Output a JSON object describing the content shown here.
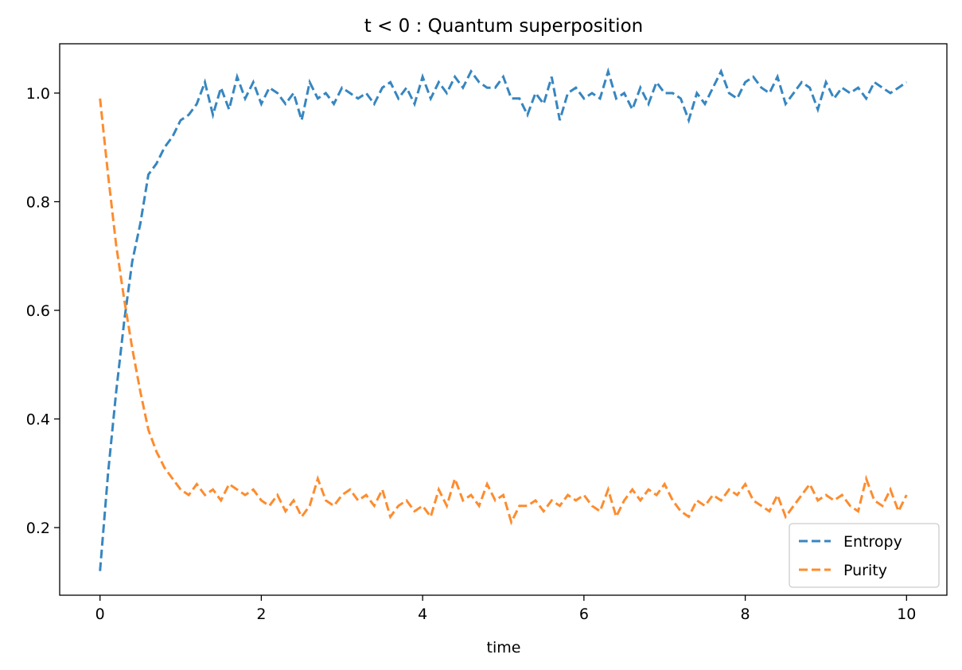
{
  "chart_data": {
    "type": "line",
    "title": "t < 0 : Quantum superposition",
    "xlabel": "time",
    "x": [
      0,
      0.1,
      0.2,
      0.3,
      0.4,
      0.5,
      0.6,
      0.7,
      0.8,
      0.9,
      1,
      1.1,
      1.2,
      1.3,
      1.4,
      1.5,
      1.6,
      1.7,
      1.8,
      1.9,
      2,
      2.1,
      2.2,
      2.3,
      2.4,
      2.5,
      2.6,
      2.7,
      2.8,
      2.9,
      3,
      3.1,
      3.2,
      3.3,
      3.4,
      3.5,
      3.6,
      3.7,
      3.8,
      3.9,
      4,
      4.1,
      4.2,
      4.3,
      4.4,
      4.5,
      4.6,
      4.7,
      4.8,
      4.9,
      5,
      5.1,
      5.2,
      5.3,
      5.4,
      5.5,
      5.6,
      5.7,
      5.8,
      5.9,
      6,
      6.1,
      6.2,
      6.3,
      6.4,
      6.5,
      6.6,
      6.7,
      6.8,
      6.9,
      7,
      7.1,
      7.2,
      7.3,
      7.4,
      7.5,
      7.6,
      7.7,
      7.8,
      7.9,
      8,
      8.1,
      8.2,
      8.3,
      8.4,
      8.5,
      8.6,
      8.7,
      8.8,
      8.9,
      9,
      9.1,
      9.2,
      9.3,
      9.4,
      9.5,
      9.6,
      9.7,
      9.8,
      9.9,
      10
    ],
    "series": [
      {
        "name": "Entropy",
        "color": "#3686c0",
        "values": [
          0.12,
          0.3,
          0.45,
          0.58,
          0.69,
          0.76,
          0.85,
          0.87,
          0.9,
          0.92,
          0.95,
          0.96,
          0.98,
          1.02,
          0.96,
          1.01,
          0.97,
          1.03,
          0.99,
          1.02,
          0.98,
          1.01,
          1.0,
          0.98,
          1.0,
          0.95,
          1.02,
          0.99,
          1.0,
          0.98,
          1.01,
          1.0,
          0.99,
          1.0,
          0.98,
          1.01,
          1.02,
          0.99,
          1.01,
          0.98,
          1.03,
          0.99,
          1.02,
          1.0,
          1.03,
          1.01,
          1.04,
          1.02,
          1.01,
          1.01,
          1.03,
          0.99,
          0.99,
          0.96,
          1.0,
          0.98,
          1.03,
          0.95,
          1.0,
          1.01,
          0.99,
          1.0,
          0.99,
          1.04,
          0.99,
          1.0,
          0.97,
          1.01,
          0.98,
          1.02,
          1.0,
          1.0,
          0.99,
          0.95,
          1.0,
          0.98,
          1.01,
          1.04,
          1.0,
          0.99,
          1.02,
          1.03,
          1.01,
          1.0,
          1.03,
          0.98,
          1.0,
          1.02,
          1.01,
          0.97,
          1.02,
          0.99,
          1.01,
          1.0,
          1.01,
          0.99,
          1.02,
          1.01,
          1.0,
          1.01,
          1.02
        ]
      },
      {
        "name": "Purity",
        "color": "#fd8c2e",
        "values": [
          0.99,
          0.85,
          0.72,
          0.62,
          0.53,
          0.45,
          0.38,
          0.34,
          0.31,
          0.29,
          0.27,
          0.26,
          0.28,
          0.26,
          0.27,
          0.25,
          0.28,
          0.27,
          0.26,
          0.27,
          0.25,
          0.24,
          0.26,
          0.23,
          0.25,
          0.22,
          0.24,
          0.29,
          0.25,
          0.24,
          0.26,
          0.27,
          0.25,
          0.26,
          0.24,
          0.27,
          0.22,
          0.24,
          0.25,
          0.23,
          0.24,
          0.22,
          0.27,
          0.24,
          0.29,
          0.25,
          0.26,
          0.24,
          0.28,
          0.25,
          0.26,
          0.21,
          0.24,
          0.24,
          0.25,
          0.23,
          0.25,
          0.24,
          0.26,
          0.25,
          0.26,
          0.24,
          0.23,
          0.27,
          0.22,
          0.25,
          0.27,
          0.25,
          0.27,
          0.26,
          0.28,
          0.25,
          0.23,
          0.22,
          0.25,
          0.24,
          0.26,
          0.25,
          0.27,
          0.26,
          0.28,
          0.25,
          0.24,
          0.23,
          0.26,
          0.22,
          0.24,
          0.26,
          0.28,
          0.25,
          0.26,
          0.25,
          0.26,
          0.24,
          0.23,
          0.29,
          0.25,
          0.24,
          0.27,
          0.23,
          0.26
        ]
      }
    ],
    "xlim": [
      -0.5,
      10.5
    ],
    "xticks": [
      0,
      2,
      4,
      6,
      8,
      10
    ],
    "ylim": [
      0.0755,
      1.0908
    ],
    "yticks": [
      0.2,
      0.4,
      0.6,
      0.8,
      {
        "value": 1,
        "label": "1.0"
      }
    ],
    "linestyle": "dashed",
    "legend": "lower right"
  }
}
